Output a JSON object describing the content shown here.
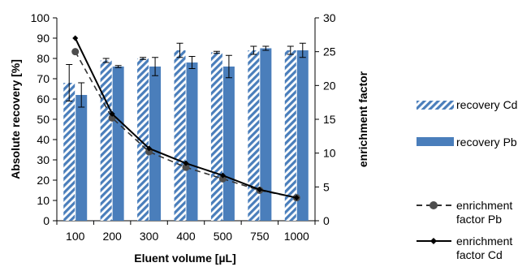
{
  "chart_data": {
    "type": "bar",
    "title": "",
    "xlabel": "Eluent volume [µL]",
    "ylabel": "Absolute recovery [%]",
    "y2label": "enrichment factor",
    "categories": [
      "100",
      "200",
      "300",
      "400",
      "500",
      "750",
      "1000"
    ],
    "ylim": [
      0,
      100
    ],
    "y2lim": [
      0,
      30
    ],
    "yticks": [
      "0",
      "10",
      "20",
      "30",
      "40",
      "50",
      "60",
      "70",
      "80",
      "90",
      "100"
    ],
    "y2ticks": [
      "0",
      "5",
      "10",
      "15",
      "20",
      "25",
      "30"
    ],
    "grid": false,
    "legend_position": "right",
    "series": [
      {
        "name": "recovery Cd",
        "kind": "bar",
        "pattern": "diagonal-stripes",
        "color": "#4a7ebb",
        "values": [
          68,
          79,
          80,
          84,
          83,
          84,
          84
        ],
        "errors": [
          9,
          1,
          0.5,
          3.5,
          0.5,
          2,
          2
        ]
      },
      {
        "name": "recovery Pb",
        "kind": "bar",
        "pattern": "solid",
        "color": "#4a7ebb",
        "values": [
          62,
          76,
          76,
          78,
          76,
          85,
          84
        ],
        "errors": [
          6,
          0.5,
          4.5,
          3,
          5.5,
          1,
          3.5
        ]
      },
      {
        "name": "enrichment factor Pb",
        "kind": "line",
        "axis": "y2",
        "style": "dashed",
        "marker": "circle",
        "color": "#333333",
        "values": [
          25,
          15.2,
          10.2,
          7.9,
          6.2,
          4.5,
          3.4
        ]
      },
      {
        "name": "enrichment factor Cd",
        "kind": "line",
        "axis": "y2",
        "style": "solid",
        "marker": "diamond",
        "color": "#000000",
        "values": [
          27,
          15.8,
          10.7,
          8.5,
          6.7,
          4.6,
          3.4
        ]
      }
    ]
  },
  "legend": {
    "recovery_cd": "recovery Cd",
    "recovery_pb": "recovery Pb",
    "ef_pb_line1": "enrichment",
    "ef_pb_line2": "factor Pb",
    "ef_cd_line1": "enrichment",
    "ef_cd_line2": "factor Cd"
  }
}
